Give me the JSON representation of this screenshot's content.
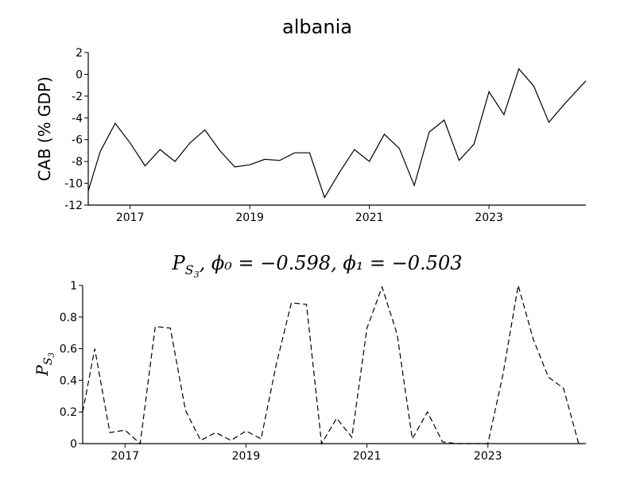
{
  "chart_data": [
    {
      "type": "line",
      "title": "albania",
      "xlabel": "",
      "ylabel": "CAB (% GDP)",
      "xlim": [
        2016.3,
        2024.62
      ],
      "ylim": [
        -12,
        2
      ],
      "x_ticks": [
        2017,
        2019,
        2021,
        2023
      ],
      "x_tick_labels": [
        "2017",
        "2019",
        "2021",
        "2023"
      ],
      "y_ticks": [
        -12,
        -10,
        -8,
        -6,
        -4,
        -2,
        0,
        2
      ],
      "y_tick_labels": [
        "-12",
        "-10",
        "-8",
        "-6",
        "-4",
        "-2",
        "0",
        "2"
      ],
      "line_style": "solid",
      "color": "#000000",
      "grid": false,
      "series": [
        {
          "x": [
            2016.3,
            2016.5,
            2016.75,
            2017.0,
            2017.25,
            2017.5,
            2017.75,
            2018.0,
            2018.25,
            2018.5,
            2018.75,
            2019.0,
            2019.25,
            2019.5,
            2019.75,
            2020.0,
            2020.25,
            2020.5,
            2020.75,
            2021.0,
            2021.25,
            2021.5,
            2021.75,
            2022.0,
            2022.25,
            2022.5,
            2022.75,
            2023.0,
            2023.25,
            2023.5,
            2023.75,
            2024.0,
            2024.25,
            2024.5,
            2024.62
          ],
          "y": [
            -10.7,
            -7.1,
            -4.5,
            -6.3,
            -8.4,
            -6.9,
            -8.0,
            -6.3,
            -5.1,
            -7.0,
            -8.5,
            -8.3,
            -7.8,
            -7.9,
            -7.2,
            -7.2,
            -11.3,
            -9.0,
            -6.9,
            -8.0,
            -5.5,
            -6.8,
            -10.2,
            -5.3,
            -4.2,
            -7.9,
            -6.4,
            -1.6,
            -3.7,
            0.5,
            -1.1,
            -4.4,
            -2.8,
            -1.3,
            -0.6
          ]
        }
      ]
    },
    {
      "type": "line",
      "title": "P_{S_3}, φ0 = −0.598, φ1 = −0.503",
      "title_parts": {
        "P": "P",
        "sub": "S",
        "subsub": "3",
        "rest": ", ϕ₀ = −0.598, ϕ₁ = −0.503"
      },
      "xlabel": "",
      "ylabel": "P_{S_3}",
      "ylabel_parts": {
        "P": "P",
        "sub": "S",
        "subsub": "3"
      },
      "xlim": [
        2016.3,
        2024.62
      ],
      "ylim": [
        0,
        1
      ],
      "x_ticks": [
        2017,
        2019,
        2021,
        2023
      ],
      "x_tick_labels": [
        "2017",
        "2019",
        "2021",
        "2023"
      ],
      "y_ticks": [
        0,
        0.2,
        0.4,
        0.6,
        0.8,
        1
      ],
      "y_tick_labels": [
        "0",
        "0.2",
        "0.4",
        "0.6",
        "0.8",
        "1"
      ],
      "line_style": "dashed",
      "color": "#000000",
      "grid": false,
      "series": [
        {
          "x": [
            2016.3,
            2016.5,
            2016.75,
            2017.0,
            2017.25,
            2017.5,
            2017.75,
            2018.0,
            2018.25,
            2018.5,
            2018.75,
            2019.0,
            2019.25,
            2019.5,
            2019.75,
            2020.0,
            2020.25,
            2020.5,
            2020.75,
            2021.0,
            2021.25,
            2021.5,
            2021.75,
            2022.0,
            2022.25,
            2022.5,
            2022.75,
            2023.0,
            2023.25,
            2023.5,
            2023.75,
            2024.0,
            2024.25,
            2024.5
          ],
          "y": [
            0.2,
            0.6,
            0.07,
            0.085,
            0.0,
            0.74,
            0.73,
            0.21,
            0.02,
            0.07,
            0.02,
            0.08,
            0.03,
            0.5,
            0.89,
            0.88,
            0.0,
            0.16,
            0.04,
            0.73,
            0.99,
            0.69,
            0.03,
            0.2,
            0.01,
            0.0,
            0.0,
            0.0,
            0.44,
            1.0,
            0.66,
            0.42,
            0.35,
            0.0
          ]
        }
      ]
    }
  ]
}
